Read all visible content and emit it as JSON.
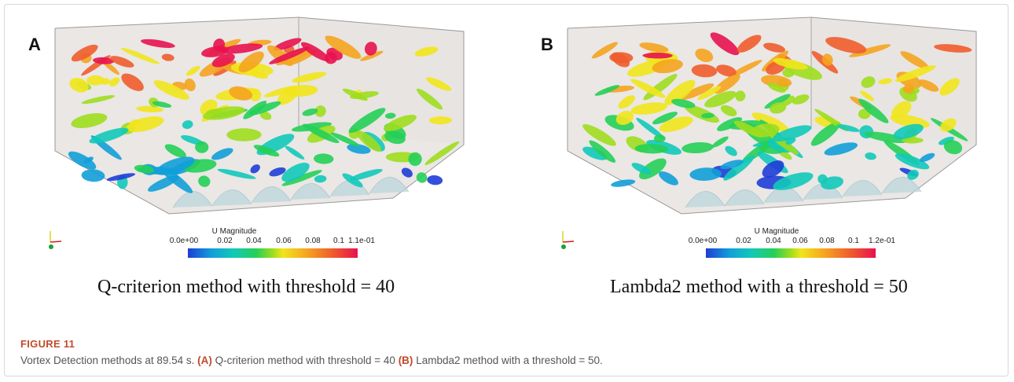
{
  "panels": [
    {
      "letter": "A",
      "colorbar_title": "U Magnitude",
      "colorbar_ticks": [
        "0.0e+00",
        "0.02",
        "0.04",
        "0.06",
        "0.08",
        "0.1",
        "1.1e-01"
      ],
      "subcaption": "Q-criterion method with threshold = 40"
    },
    {
      "letter": "B",
      "colorbar_title": "U Magnitude",
      "colorbar_ticks": [
        "0.0e+00",
        "0.02",
        "0.04",
        "0.06",
        "0.08",
        "0.1",
        "1.2e-01"
      ],
      "subcaption": "Lambda2 method with a threshold = 50"
    }
  ],
  "figure": {
    "label": "FIGURE 11",
    "caption_intro": "Vortex Detection methods at 89.54 s.",
    "caption_a_tag": "(A)",
    "caption_a_text": "Q-criterion method with threshold = 40",
    "caption_b_tag": "(B)",
    "caption_b_text": "Lambda2 method with a threshold = 50."
  },
  "colors": {
    "colormap": [
      "#1f3dd6",
      "#129fd8",
      "#12c9b9",
      "#25cf57",
      "#9edd1e",
      "#f1e51c",
      "#f5a41f",
      "#ef5d2c",
      "#e8124f"
    ],
    "accent": "#c24a2a"
  }
}
